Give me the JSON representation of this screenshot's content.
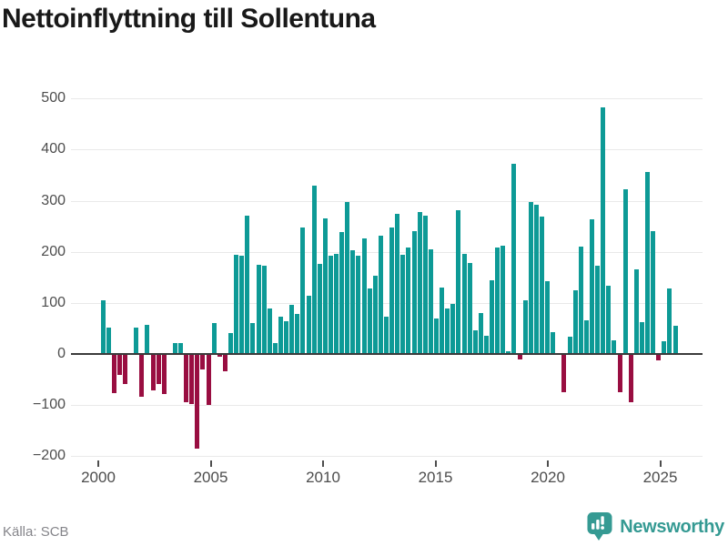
{
  "title": "Nettoinflyttning till Sollentuna",
  "source": "Källa: SCB",
  "branding": {
    "name": "Newsworthy"
  },
  "colors": {
    "positive_bar": "#0d9a96",
    "negative_bar": "#990e41",
    "brand_teal": "#359a93",
    "grid": "#e9e9e9",
    "zero_axis": "#3b3b3b",
    "axis_text": "#4d4d4d",
    "title_text": "#191919",
    "source_text": "#85858a"
  },
  "y_axis": {
    "ticks": [
      {
        "label": "500",
        "value": 500
      },
      {
        "label": "400",
        "value": 400
      },
      {
        "label": "300",
        "value": 300
      },
      {
        "label": "200",
        "value": 200
      },
      {
        "label": "100",
        "value": 100
      },
      {
        "label": "0",
        "value": 0
      },
      {
        "label": "−100",
        "value": -100
      },
      {
        "label": "−200",
        "value": -200
      }
    ]
  },
  "x_axis": {
    "ticks": [
      {
        "label": "2000"
      },
      {
        "label": "2005"
      },
      {
        "label": "2010"
      },
      {
        "label": "2015"
      },
      {
        "label": "2020"
      },
      {
        "label": "2025"
      }
    ]
  },
  "chart_data": {
    "type": "bar",
    "title": "Nettoinflyttning till Sollentuna",
    "xlabel": "",
    "ylabel": "",
    "ylim": [
      -215,
      515
    ],
    "grid": true,
    "legend_position": "none",
    "x": [
      "2000 Q1",
      "2000 Q2",
      "2000 Q3",
      "2000 Q4",
      "2001 Q1",
      "2001 Q2",
      "2001 Q3",
      "2001 Q4",
      "2002 Q1",
      "2002 Q2",
      "2002 Q3",
      "2002 Q4",
      "2003 Q1",
      "2003 Q2",
      "2003 Q3",
      "2003 Q4",
      "2004 Q1",
      "2004 Q2",
      "2004 Q3",
      "2004 Q4",
      "2005 Q1",
      "2005 Q2",
      "2005 Q3",
      "2005 Q4",
      "2006 Q1",
      "2006 Q2",
      "2006 Q3",
      "2006 Q4",
      "2007 Q1",
      "2007 Q2",
      "2007 Q3",
      "2007 Q4",
      "2008 Q1",
      "2008 Q2",
      "2008 Q3",
      "2008 Q4",
      "2009 Q1",
      "2009 Q2",
      "2009 Q3",
      "2009 Q4",
      "2010 Q1",
      "2010 Q2",
      "2010 Q3",
      "2010 Q4",
      "2011 Q1",
      "2011 Q2",
      "2011 Q3",
      "2011 Q4",
      "2012 Q1",
      "2012 Q2",
      "2012 Q3",
      "2012 Q4",
      "2013 Q1",
      "2013 Q2",
      "2013 Q3",
      "2013 Q4",
      "2014 Q1",
      "2014 Q2",
      "2014 Q3",
      "2014 Q4",
      "2015 Q1",
      "2015 Q2",
      "2015 Q3",
      "2015 Q4",
      "2016 Q1",
      "2016 Q2",
      "2016 Q3",
      "2016 Q4",
      "2017 Q1",
      "2017 Q2",
      "2017 Q3",
      "2017 Q4",
      "2018 Q1",
      "2018 Q2",
      "2018 Q3",
      "2018 Q4",
      "2019 Q1",
      "2019 Q2",
      "2019 Q3",
      "2019 Q4",
      "2020 Q1",
      "2020 Q2",
      "2020 Q3",
      "2020 Q4",
      "2021 Q1",
      "2021 Q2",
      "2021 Q3",
      "2021 Q4",
      "2022 Q1",
      "2022 Q2",
      "2022 Q3",
      "2022 Q4",
      "2023 Q1",
      "2023 Q2",
      "2023 Q3",
      "2023 Q4",
      "2024 Q1",
      "2024 Q2",
      "2024 Q3",
      "2024 Q4",
      "2025 Q1",
      "2025 Q2",
      "2025 Q3",
      "2025 Q4"
    ],
    "values": [
      105,
      52,
      -76,
      -40,
      -58,
      0,
      52,
      -83,
      57,
      -71,
      -58,
      -79,
      0,
      22,
      22,
      -95,
      -98,
      -186,
      -31,
      -99,
      60,
      -5,
      -33,
      41,
      195,
      192,
      271,
      60,
      175,
      172,
      89,
      22,
      74,
      64,
      96,
      79,
      247,
      114,
      329,
      177,
      266,
      193,
      196,
      239,
      298,
      204,
      192,
      226,
      128,
      153,
      232,
      73,
      247,
      274,
      195,
      208,
      241,
      278,
      271,
      205,
      69,
      131,
      89,
      98,
      281,
      196,
      179,
      46,
      80,
      35,
      145,
      208,
      212,
      5,
      372,
      -11,
      105,
      297,
      293,
      269,
      143,
      42,
      0,
      -74,
      34,
      125,
      211,
      66,
      263,
      173,
      483,
      134,
      26,
      -74,
      322,
      -95,
      165,
      62,
      357,
      240,
      -13,
      25,
      129,
      56
    ]
  }
}
